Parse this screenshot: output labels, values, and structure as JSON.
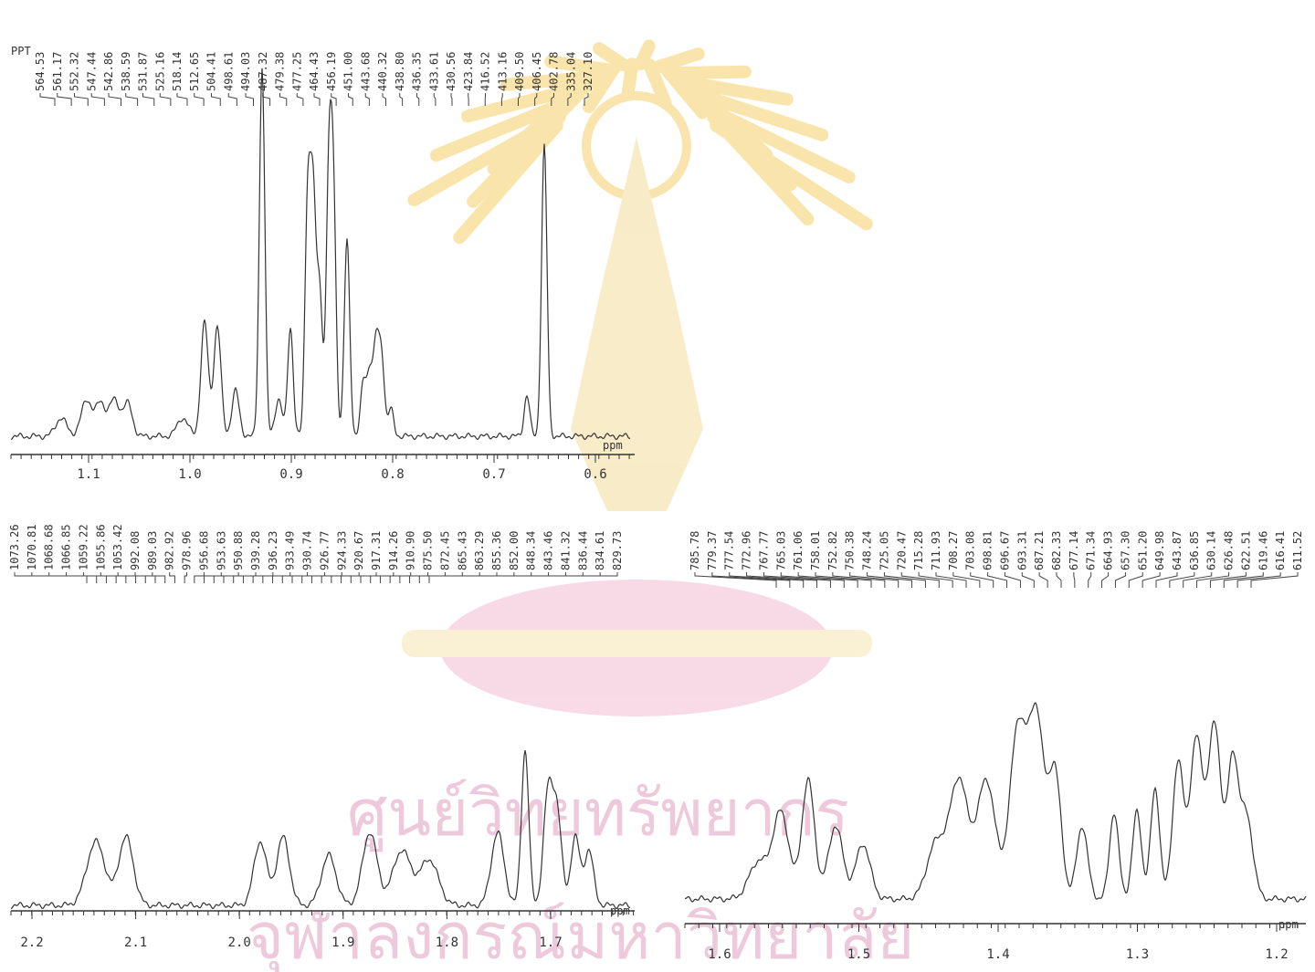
{
  "watermark": {
    "line1": "ศูนย์วิทยทรัพยากร",
    "line2": "จุฬาลงกรณ์มหาวิทยาลัย"
  },
  "spectra": [
    {
      "header": "PPT",
      "peak_labels": [
        "564.53",
        "561.17",
        "552.32",
        "547.44",
        "542.86",
        "538.59",
        "531.87",
        "525.16",
        "518.14",
        "512.65",
        "504.41",
        "498.61",
        "494.03",
        "487.32",
        "479.38",
        "477.25",
        "464.43",
        "456.19",
        "451.00",
        "443.68",
        "440.32",
        "438.80",
        "436.35",
        "433.61",
        "430.56",
        "423.84",
        "416.52",
        "413.16",
        "409.50",
        "406.45",
        "402.78",
        "335.04",
        "327.10"
      ],
      "axis_labels": [
        "1.1",
        "1.0",
        "0.9",
        "0.8",
        "0.7",
        "0.6"
      ],
      "unit": "ppm"
    },
    {
      "peak_labels": [
        "1073.26",
        "1070.81",
        "1068.68",
        "1066.85",
        "1059.22",
        "1055.86",
        "1053.42",
        "992.08",
        "989.03",
        "982.92",
        "978.96",
        "956.68",
        "953.63",
        "950.88",
        "939.28",
        "936.23",
        "933.49",
        "930.74",
        "926.77",
        "924.33",
        "920.67",
        "917.31",
        "914.26",
        "910.90",
        "875.50",
        "872.45",
        "865.43",
        "863.29",
        "855.36",
        "852.00",
        "848.34",
        "843.46",
        "841.32",
        "836.44",
        "834.61",
        "829.73"
      ],
      "axis_labels": [
        "2.2",
        "2.1",
        "2.0",
        "1.9",
        "1.8",
        "1.7"
      ],
      "unit": "ppm"
    },
    {
      "peak_labels": [
        "785.78",
        "779.37",
        "777.54",
        "772.96",
        "767.77",
        "765.03",
        "761.06",
        "758.01",
        "752.82",
        "750.38",
        "748.24",
        "725.05",
        "720.47",
        "715.28",
        "711.93",
        "708.27",
        "703.08",
        "698.81",
        "696.67",
        "693.31",
        "687.21",
        "682.33",
        "677.14",
        "671.34",
        "664.93",
        "657.30",
        "651.20",
        "649.98",
        "643.87",
        "636.85",
        "630.14",
        "626.48",
        "622.51",
        "619.46",
        "616.41",
        "611.52"
      ],
      "axis_labels": [
        "1.6",
        "1.5",
        "1.4",
        "1.3",
        "1.2"
      ],
      "unit": "ppm"
    }
  ]
}
